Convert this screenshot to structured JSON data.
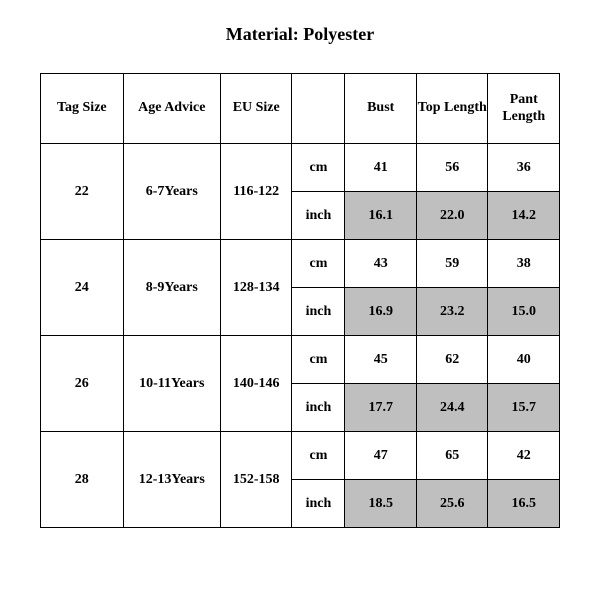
{
  "title": "Material: Polyester",
  "headers": {
    "tag": "Tag Size",
    "age": "Age Advice",
    "eu": "EU Size",
    "unit": "",
    "bust": "Bust",
    "top": "Top Length",
    "pant": "Pant Length"
  },
  "units": {
    "cm": "cm",
    "inch": "inch"
  },
  "rows": [
    {
      "tag": "22",
      "age": "6-7Years",
      "eu": "116-122",
      "cm": {
        "bust": "41",
        "top": "56",
        "pant": "36"
      },
      "in": {
        "bust": "16.1",
        "top": "22.0",
        "pant": "14.2"
      }
    },
    {
      "tag": "24",
      "age": "8-9Years",
      "eu": "128-134",
      "cm": {
        "bust": "43",
        "top": "59",
        "pant": "38"
      },
      "in": {
        "bust": "16.9",
        "top": "23.2",
        "pant": "15.0"
      }
    },
    {
      "tag": "26",
      "age": "10-11Years",
      "eu": "140-146",
      "cm": {
        "bust": "45",
        "top": "62",
        "pant": "40"
      },
      "in": {
        "bust": "17.7",
        "top": "24.4",
        "pant": "15.7"
      }
    },
    {
      "tag": "28",
      "age": "12-13Years",
      "eu": "152-158",
      "cm": {
        "bust": "47",
        "top": "65",
        "pant": "42"
      },
      "in": {
        "bust": "18.5",
        "top": "25.6",
        "pant": "16.5"
      }
    }
  ],
  "colors": {
    "shade": "#bfbfbf",
    "border": "#000000",
    "bg": "#ffffff",
    "text": "#000000"
  },
  "fonts": {
    "family": "Times New Roman",
    "title_pt": 18,
    "cell_pt": 14
  }
}
